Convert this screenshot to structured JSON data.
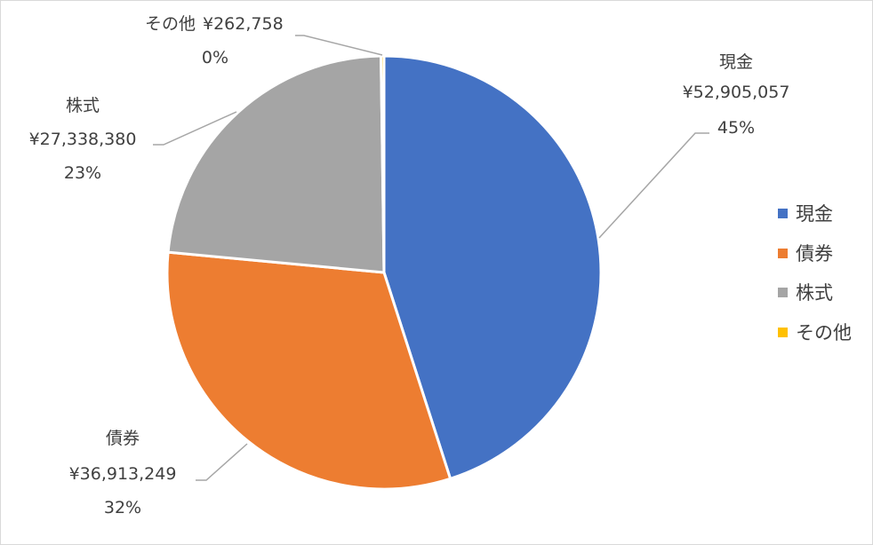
{
  "chart_data": {
    "type": "pie",
    "title": "",
    "categories": [
      "現金",
      "債券",
      "株式",
      "その他"
    ],
    "values": [
      52905057,
      36913249,
      27338380,
      262758
    ],
    "value_labels": [
      "¥52,905,057",
      "¥36,913,249",
      "¥27,338,380",
      "¥262,758"
    ],
    "percent_labels": [
      "45%",
      "32%",
      "23%",
      "0%"
    ],
    "colors": [
      "#4472c4",
      "#ed7d31",
      "#a5a5a5",
      "#ffc000"
    ],
    "legend": {
      "position": "right",
      "entries": [
        "現金",
        "債券",
        "株式",
        "その他"
      ]
    },
    "start_angle_deg": 0,
    "direction": "clockwise"
  }
}
